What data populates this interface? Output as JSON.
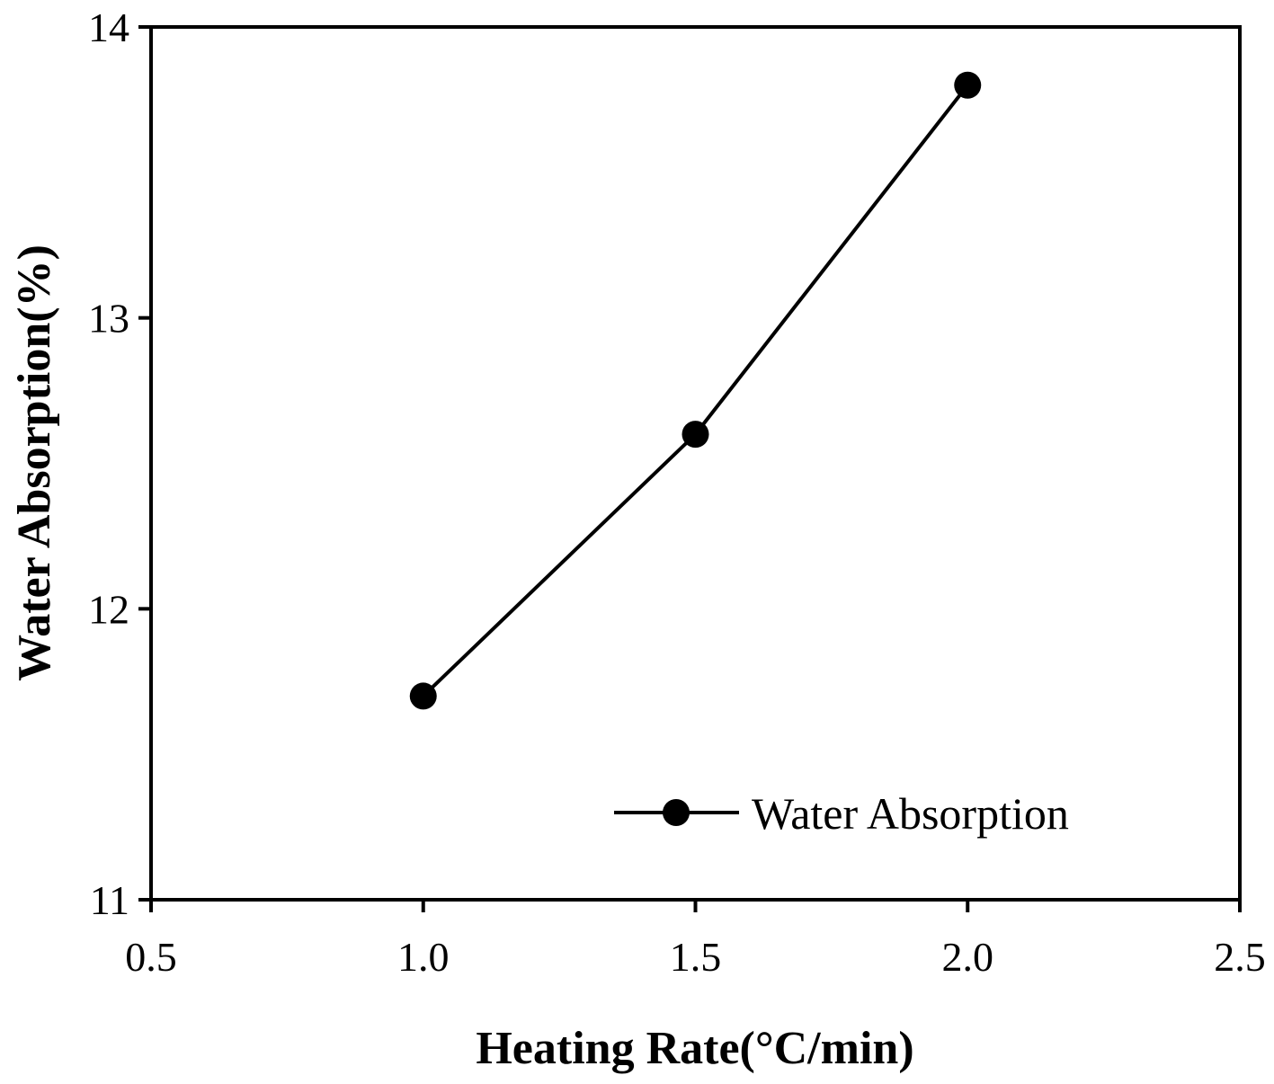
{
  "chart_data": {
    "type": "line",
    "title": "",
    "xlabel": "Heating Rate(°C/min)",
    "ylabel": "Water Absorption(%)",
    "xlim": [
      0.5,
      2.5
    ],
    "ylim": [
      11,
      14
    ],
    "xticks": [
      "0.5",
      "1.0",
      "1.5",
      "2.0",
      "2.5"
    ],
    "yticks": [
      "11",
      "12",
      "13",
      "14"
    ],
    "grid": false,
    "legend_position": "bottom-right",
    "series": [
      {
        "name": "Water Absorption",
        "color": "#000000",
        "marker": "circle",
        "x": [
          1.0,
          1.5,
          2.0
        ],
        "y": [
          11.7,
          12.6,
          13.8
        ]
      }
    ]
  }
}
